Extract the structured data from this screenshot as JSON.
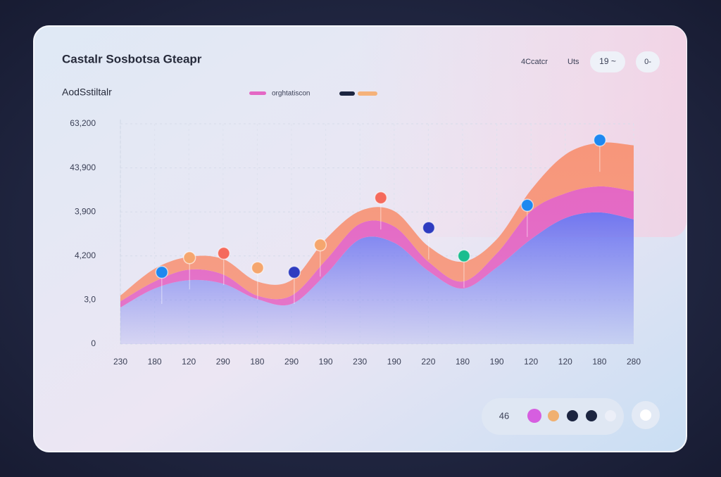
{
  "ui": {
    "top_right_label": "4Ccatcr",
    "top_right_unit": "Uts",
    "range_pill": "19 ~",
    "icon_pill": "0-",
    "footer_value": "46"
  },
  "chart_data": {
    "type": "stacked_area",
    "title": "Castalr Sosbotsa Gteapr",
    "subtitle": "AodSstiltalr",
    "categories": [
      "230",
      "180",
      "120",
      "290",
      "180",
      "290",
      "190",
      "230",
      "190",
      "220",
      "180",
      "190",
      "120",
      "120",
      "180",
      "280"
    ],
    "series": [
      {
        "color": "#6a72f0",
        "values": [
          0.83,
          1.26,
          1.45,
          1.37,
          1.02,
          0.91,
          1.58,
          2.38,
          2.3,
          1.66,
          1.26,
          1.74,
          2.38,
          2.86,
          2.99,
          2.83
        ]
      },
      {
        "name": "orghtatiscon",
        "color": "#e468c4",
        "values": [
          0.14,
          0.16,
          0.24,
          0.21,
          0.08,
          0.19,
          0.32,
          0.35,
          0.37,
          0.21,
          0.16,
          0.32,
          0.64,
          0.56,
          0.59,
          0.64
        ]
      },
      {
        "color": "#f7967a",
        "values": [
          0.13,
          0.29,
          0.29,
          0.35,
          0.32,
          0.35,
          0.48,
          0.29,
          0.35,
          0.35,
          0.45,
          0.32,
          0.48,
          0.88,
          0.99,
          1.04
        ]
      }
    ],
    "legend_swatches": [
      "#d65ee0",
      "#1c2540",
      "#f5b27a"
    ],
    "markers": [
      {
        "x": 1.21,
        "y": 1.63,
        "color": "#1e88f0"
      },
      {
        "x": 2.02,
        "y": 1.96,
        "color": "#f5a66e"
      },
      {
        "x": 3.02,
        "y": 2.06,
        "color": "#f56a5c"
      },
      {
        "x": 4.01,
        "y": 1.73,
        "color": "#f5a66e"
      },
      {
        "x": 5.08,
        "y": 1.63,
        "color": "#2e3cc0"
      },
      {
        "x": 5.84,
        "y": 2.25,
        "color": "#f5a66e"
      },
      {
        "x": 7.61,
        "y": 3.32,
        "color": "#f56a5c"
      },
      {
        "x": 9.01,
        "y": 2.64,
        "color": "#2e3cc0"
      },
      {
        "x": 10.04,
        "y": 2.0,
        "color": "#1bbd8f"
      },
      {
        "x": 11.89,
        "y": 3.15,
        "color": "#1e88f0"
      },
      {
        "x": 14.01,
        "y": 4.63,
        "color": "#1e88f0"
      }
    ],
    "footer_dots": [
      "#d65ee0",
      "#f0b070",
      "#1c2540",
      "#1c2540",
      "#eceff8"
    ],
    "ylim": [
      0,
      5
    ],
    "yticks": [
      {
        "value": 0,
        "label": "0"
      },
      {
        "value": 1,
        "label": "3,0"
      },
      {
        "value": 2,
        "label": "4,200"
      },
      {
        "value": 3,
        "label": "3,900"
      },
      {
        "value": 4,
        "label": "43,900"
      },
      {
        "value": 5,
        "label": "63,200"
      }
    ],
    "grid": true
  }
}
